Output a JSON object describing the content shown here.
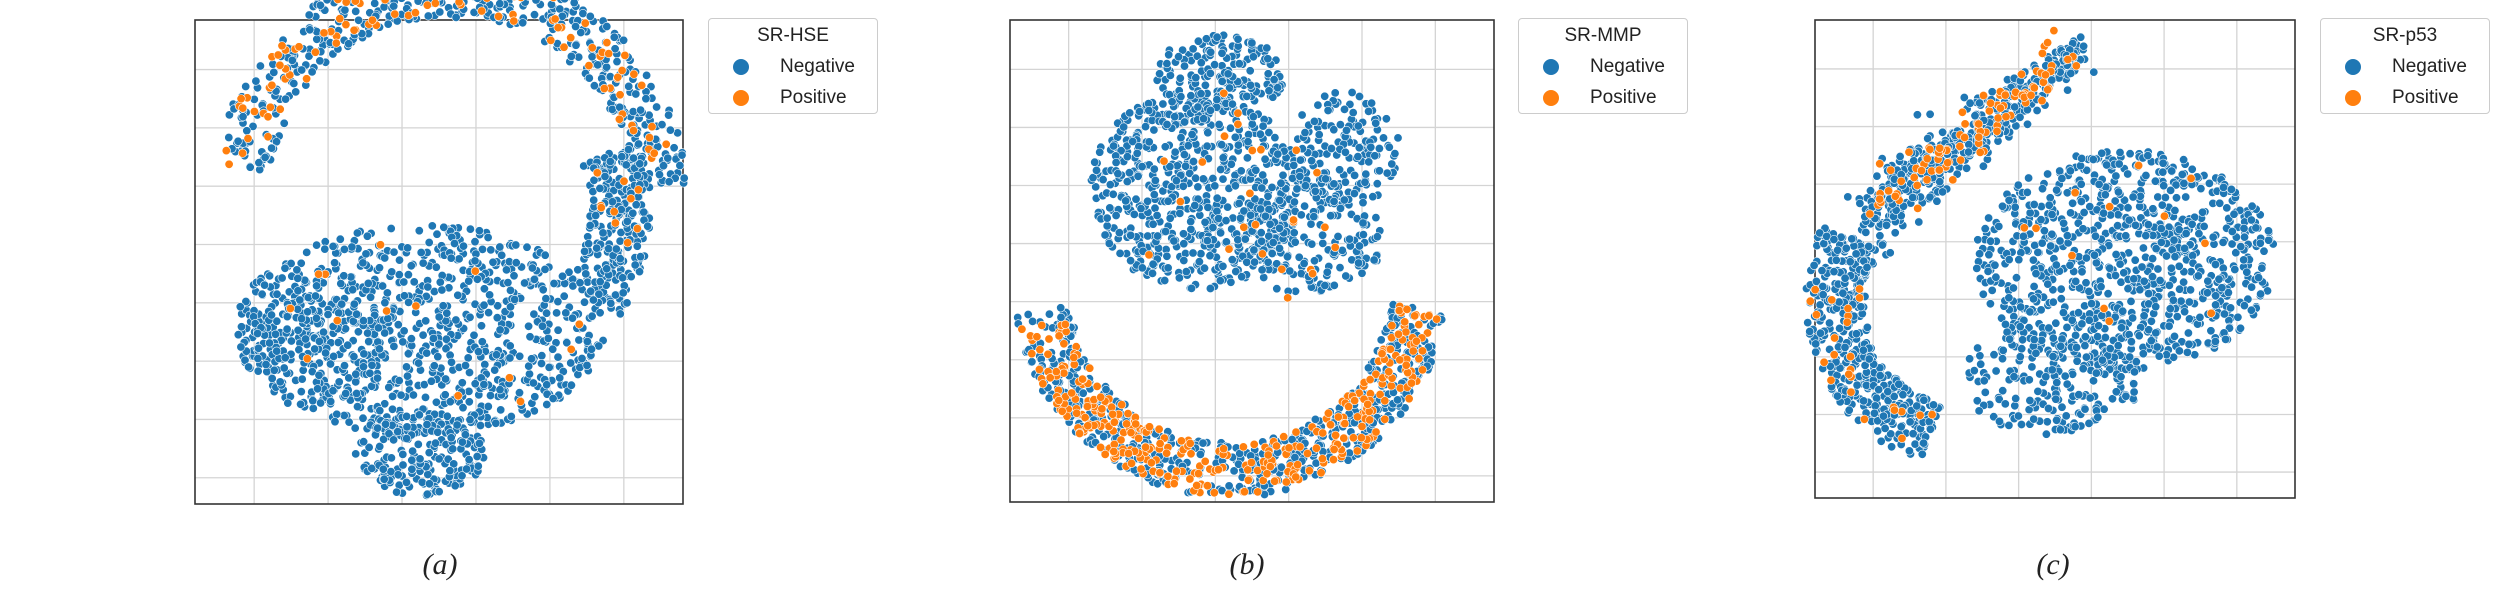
{
  "chart_data": [
    {
      "type": "scatter",
      "caption": "(a)",
      "legend": {
        "title": "SR-HSE",
        "entries": [
          {
            "label": "Negative",
            "color": "#1f77b4"
          },
          {
            "label": "Positive",
            "color": "#ff7f0e"
          }
        ]
      },
      "grid": true,
      "series": [
        {
          "label_ref": 0,
          "description_points": "dense blue cluster"
        },
        {
          "label_ref": 1
        }
      ]
    },
    {
      "type": "scatter",
      "caption": "(b)",
      "legend": {
        "title": "SR-MMP",
        "entries": [
          {
            "label": "Negative",
            "color": "#1f77b4"
          },
          {
            "label": "Positive",
            "color": "#ff7f0e"
          }
        ]
      },
      "grid": true
    },
    {
      "type": "scatter",
      "caption": "(c)",
      "legend": {
        "title": "SR-p53",
        "entries": [
          {
            "label": "Negative",
            "color": "#1f77b4"
          },
          {
            "label": "Positive",
            "color": "#ff7f0e"
          }
        ]
      },
      "grid": true
    }
  ]
}
